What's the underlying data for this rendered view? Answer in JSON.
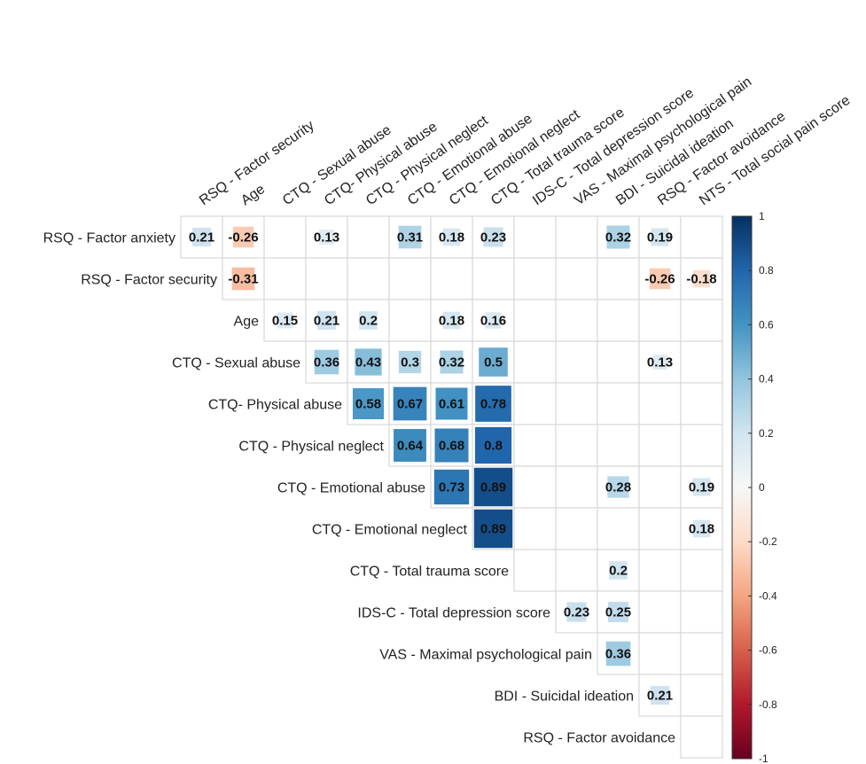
{
  "chart_data": {
    "type": "heatmap",
    "subtype": "correlation-upper-triangle",
    "row_labels": [
      "RSQ - Factor anxiety",
      "RSQ - Factor security",
      "Age",
      "CTQ - Sexual abuse",
      "CTQ- Physical abuse",
      "CTQ - Physical neglect",
      "CTQ - Emotional abuse",
      "CTQ - Emotional neglect",
      "CTQ - Total trauma score",
      "IDS-C - Total depression score",
      "VAS - Maximal psychological pain",
      "BDI - Suicidal ideation",
      "RSQ - Factor avoidance"
    ],
    "col_labels": [
      "RSQ - Factor security",
      "Age",
      "CTQ - Sexual abuse",
      "CTQ- Physical abuse",
      "CTQ - Physical neglect",
      "CTQ - Emotional abuse",
      "CTQ - Emotional neglect",
      "CTQ - Total trauma score",
      "IDS-C - Total depression score",
      "VAS - Maximal psychological pain",
      "BDI - Suicidal ideation",
      "RSQ - Factor avoidance",
      "NTS - Total social pain score"
    ],
    "cells": [
      {
        "row": 0,
        "col": 0,
        "value": 0.21
      },
      {
        "row": 0,
        "col": 1,
        "value": -0.26
      },
      {
        "row": 0,
        "col": 3,
        "value": 0.13
      },
      {
        "row": 0,
        "col": 5,
        "value": 0.31
      },
      {
        "row": 0,
        "col": 6,
        "value": 0.18
      },
      {
        "row": 0,
        "col": 7,
        "value": 0.23
      },
      {
        "row": 0,
        "col": 10,
        "value": 0.32
      },
      {
        "row": 0,
        "col": 11,
        "value": 0.19
      },
      {
        "row": 1,
        "col": 1,
        "value": -0.31
      },
      {
        "row": 1,
        "col": 11,
        "value": -0.26
      },
      {
        "row": 1,
        "col": 12,
        "value": -0.18
      },
      {
        "row": 2,
        "col": 2,
        "value": 0.15
      },
      {
        "row": 2,
        "col": 3,
        "value": 0.21
      },
      {
        "row": 2,
        "col": 4,
        "value": 0.2
      },
      {
        "row": 2,
        "col": 6,
        "value": 0.18
      },
      {
        "row": 2,
        "col": 7,
        "value": 0.16
      },
      {
        "row": 3,
        "col": 3,
        "value": 0.36
      },
      {
        "row": 3,
        "col": 4,
        "value": 0.43
      },
      {
        "row": 3,
        "col": 5,
        "value": 0.3
      },
      {
        "row": 3,
        "col": 6,
        "value": 0.32
      },
      {
        "row": 3,
        "col": 7,
        "value": 0.5
      },
      {
        "row": 3,
        "col": 11,
        "value": 0.13
      },
      {
        "row": 4,
        "col": 4,
        "value": 0.58
      },
      {
        "row": 4,
        "col": 5,
        "value": 0.67
      },
      {
        "row": 4,
        "col": 6,
        "value": 0.61
      },
      {
        "row": 4,
        "col": 7,
        "value": 0.78
      },
      {
        "row": 5,
        "col": 5,
        "value": 0.64
      },
      {
        "row": 5,
        "col": 6,
        "value": 0.68
      },
      {
        "row": 5,
        "col": 7,
        "value": 0.8
      },
      {
        "row": 6,
        "col": 6,
        "value": 0.73
      },
      {
        "row": 6,
        "col": 7,
        "value": 0.89
      },
      {
        "row": 6,
        "col": 10,
        "value": 0.28
      },
      {
        "row": 6,
        "col": 12,
        "value": 0.19
      },
      {
        "row": 7,
        "col": 7,
        "value": 0.89
      },
      {
        "row": 7,
        "col": 12,
        "value": 0.18
      },
      {
        "row": 8,
        "col": 10,
        "value": 0.2
      },
      {
        "row": 9,
        "col": 9,
        "value": 0.23
      },
      {
        "row": 9,
        "col": 10,
        "value": 0.25
      },
      {
        "row": 10,
        "col": 10,
        "value": 0.36
      },
      {
        "row": 11,
        "col": 11,
        "value": 0.21
      }
    ],
    "colorbar": {
      "range": [
        -1,
        1
      ],
      "ticks": [
        "1",
        "0.8",
        "0.6",
        "0.4",
        "0.2",
        "0",
        "-0.2",
        "-0.4",
        "-0.6",
        "-0.8",
        "-1"
      ],
      "colors": {
        "negative_end": "#67001f",
        "neutral": "#f7f7f7",
        "positive_end": "#053061"
      }
    },
    "grid": true,
    "legend_position": "right"
  }
}
